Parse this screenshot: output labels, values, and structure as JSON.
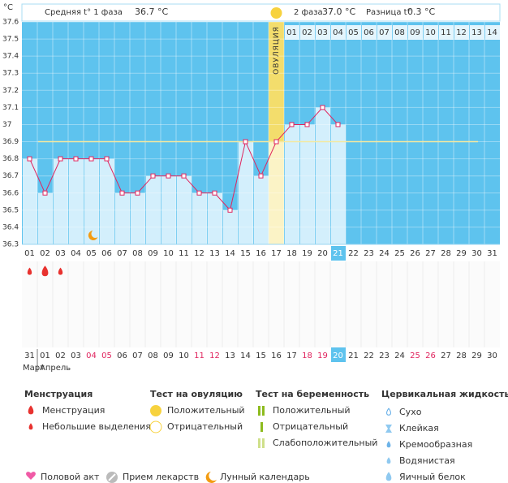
{
  "header": {
    "phase1_label": "Средняя t° 1 фаза",
    "phase1_value": "36.7 °C",
    "phase2_label": "2 фаза",
    "phase2_value": "37.0 °C",
    "diff_label": "Разница t°",
    "diff_value": "0.3 °C"
  },
  "chart_data": {
    "type": "line",
    "y_unit": "°C",
    "ylim": [
      36.3,
      37.6
    ],
    "yticks": [
      36.3,
      36.4,
      36.5,
      36.6,
      36.7,
      36.8,
      36.9,
      37,
      37.1,
      37.2,
      37.3,
      37.4,
      37.5,
      37.6
    ],
    "grid": true,
    "coverline": 36.9,
    "line_color": "#e0245e",
    "ovulation_label": "ОВУЛЯЦИЯ",
    "luteal_days": [
      "01",
      "02",
      "03",
      "04",
      "05",
      "06",
      "07",
      "08",
      "09",
      "10",
      "11",
      "12",
      "13",
      "14"
    ],
    "days": [
      {
        "label": "01",
        "temp": 36.8,
        "flow": "light"
      },
      {
        "label": "02",
        "temp": 36.6,
        "flow": "heavy"
      },
      {
        "label": "03",
        "temp": 36.8,
        "flow": "light"
      },
      {
        "label": "04",
        "temp": 36.8
      },
      {
        "label": "05",
        "temp": 36.8,
        "lunar": true
      },
      {
        "label": "06",
        "temp": 36.8
      },
      {
        "label": "07",
        "temp": 36.6
      },
      {
        "label": "08",
        "temp": 36.6
      },
      {
        "label": "09",
        "temp": 36.7
      },
      {
        "label": "10",
        "temp": 36.7
      },
      {
        "label": "11",
        "temp": 36.7
      },
      {
        "label": "12",
        "temp": 36.6
      },
      {
        "label": "13",
        "temp": 36.6
      },
      {
        "label": "14",
        "temp": 36.5
      },
      {
        "label": "15",
        "temp": 36.9
      },
      {
        "label": "16",
        "temp": 36.7
      },
      {
        "label": "17",
        "temp": 36.9,
        "ovulation": true
      },
      {
        "label": "18",
        "temp": 37
      },
      {
        "label": "19",
        "temp": 37
      },
      {
        "label": "20",
        "temp": 37.1
      },
      {
        "label": "21",
        "temp": 37,
        "today": true
      },
      {
        "label": "22",
        "temp": null
      },
      {
        "label": "23",
        "temp": null
      },
      {
        "label": "24",
        "temp": null
      },
      {
        "label": "25",
        "temp": null
      },
      {
        "label": "26",
        "temp": null
      },
      {
        "label": "27",
        "temp": null
      },
      {
        "label": "28",
        "temp": null
      },
      {
        "label": "29",
        "temp": null
      },
      {
        "label": "30",
        "temp": null
      },
      {
        "label": "31",
        "temp": null
      }
    ],
    "dates": [
      {
        "text": "31",
        "color": "#333333"
      },
      {
        "text": "01",
        "color": "#333333"
      },
      {
        "text": "02",
        "color": "#333333"
      },
      {
        "text": "03",
        "color": "#333333"
      },
      {
        "text": "04",
        "color": "#e0245e"
      },
      {
        "text": "05",
        "color": "#e0245e"
      },
      {
        "text": "06",
        "color": "#333333"
      },
      {
        "text": "07",
        "color": "#333333"
      },
      {
        "text": "08",
        "color": "#333333"
      },
      {
        "text": "09",
        "color": "#333333"
      },
      {
        "text": "10",
        "color": "#333333"
      },
      {
        "text": "11",
        "color": "#e0245e"
      },
      {
        "text": "12",
        "color": "#e0245e"
      },
      {
        "text": "13",
        "color": "#333333"
      },
      {
        "text": "14",
        "color": "#333333"
      },
      {
        "text": "15",
        "color": "#333333"
      },
      {
        "text": "16",
        "color": "#333333"
      },
      {
        "text": "17",
        "color": "#333333"
      },
      {
        "text": "18",
        "color": "#e0245e"
      },
      {
        "text": "19",
        "color": "#e0245e"
      },
      {
        "text": "20",
        "color": "#333333",
        "today": true
      },
      {
        "text": "21",
        "color": "#333333"
      },
      {
        "text": "22",
        "color": "#333333"
      },
      {
        "text": "23",
        "color": "#333333"
      },
      {
        "text": "24",
        "color": "#333333"
      },
      {
        "text": "25",
        "color": "#e0245e"
      },
      {
        "text": "26",
        "color": "#e0245e"
      },
      {
        "text": "27",
        "color": "#333333"
      },
      {
        "text": "28",
        "color": "#333333"
      },
      {
        "text": "29",
        "color": "#333333"
      },
      {
        "text": "30",
        "color": "#333333"
      }
    ],
    "months": [
      "Март",
      "Апрель"
    ]
  },
  "legend": {
    "menstruation": {
      "title": "Менструация",
      "items": [
        "Менструация",
        "Небольшие выделения"
      ]
    },
    "ovulation_test": {
      "title": "Тест на овуляцию",
      "items": [
        "Положительный",
        "Отрицательный"
      ]
    },
    "pregnancy_test": {
      "title": "Тест на беременность",
      "items": [
        "Положительный",
        "Отрицательный",
        "Слабоположительный"
      ]
    },
    "cervical": {
      "title": "Цервикальная жидкость",
      "items": [
        "Сухо",
        "Клейкая",
        "Кремообразная",
        "Водянистая",
        "Яичный белок"
      ]
    },
    "other": [
      "Половой акт",
      "Прием лекарств",
      "Лунный календарь"
    ]
  }
}
